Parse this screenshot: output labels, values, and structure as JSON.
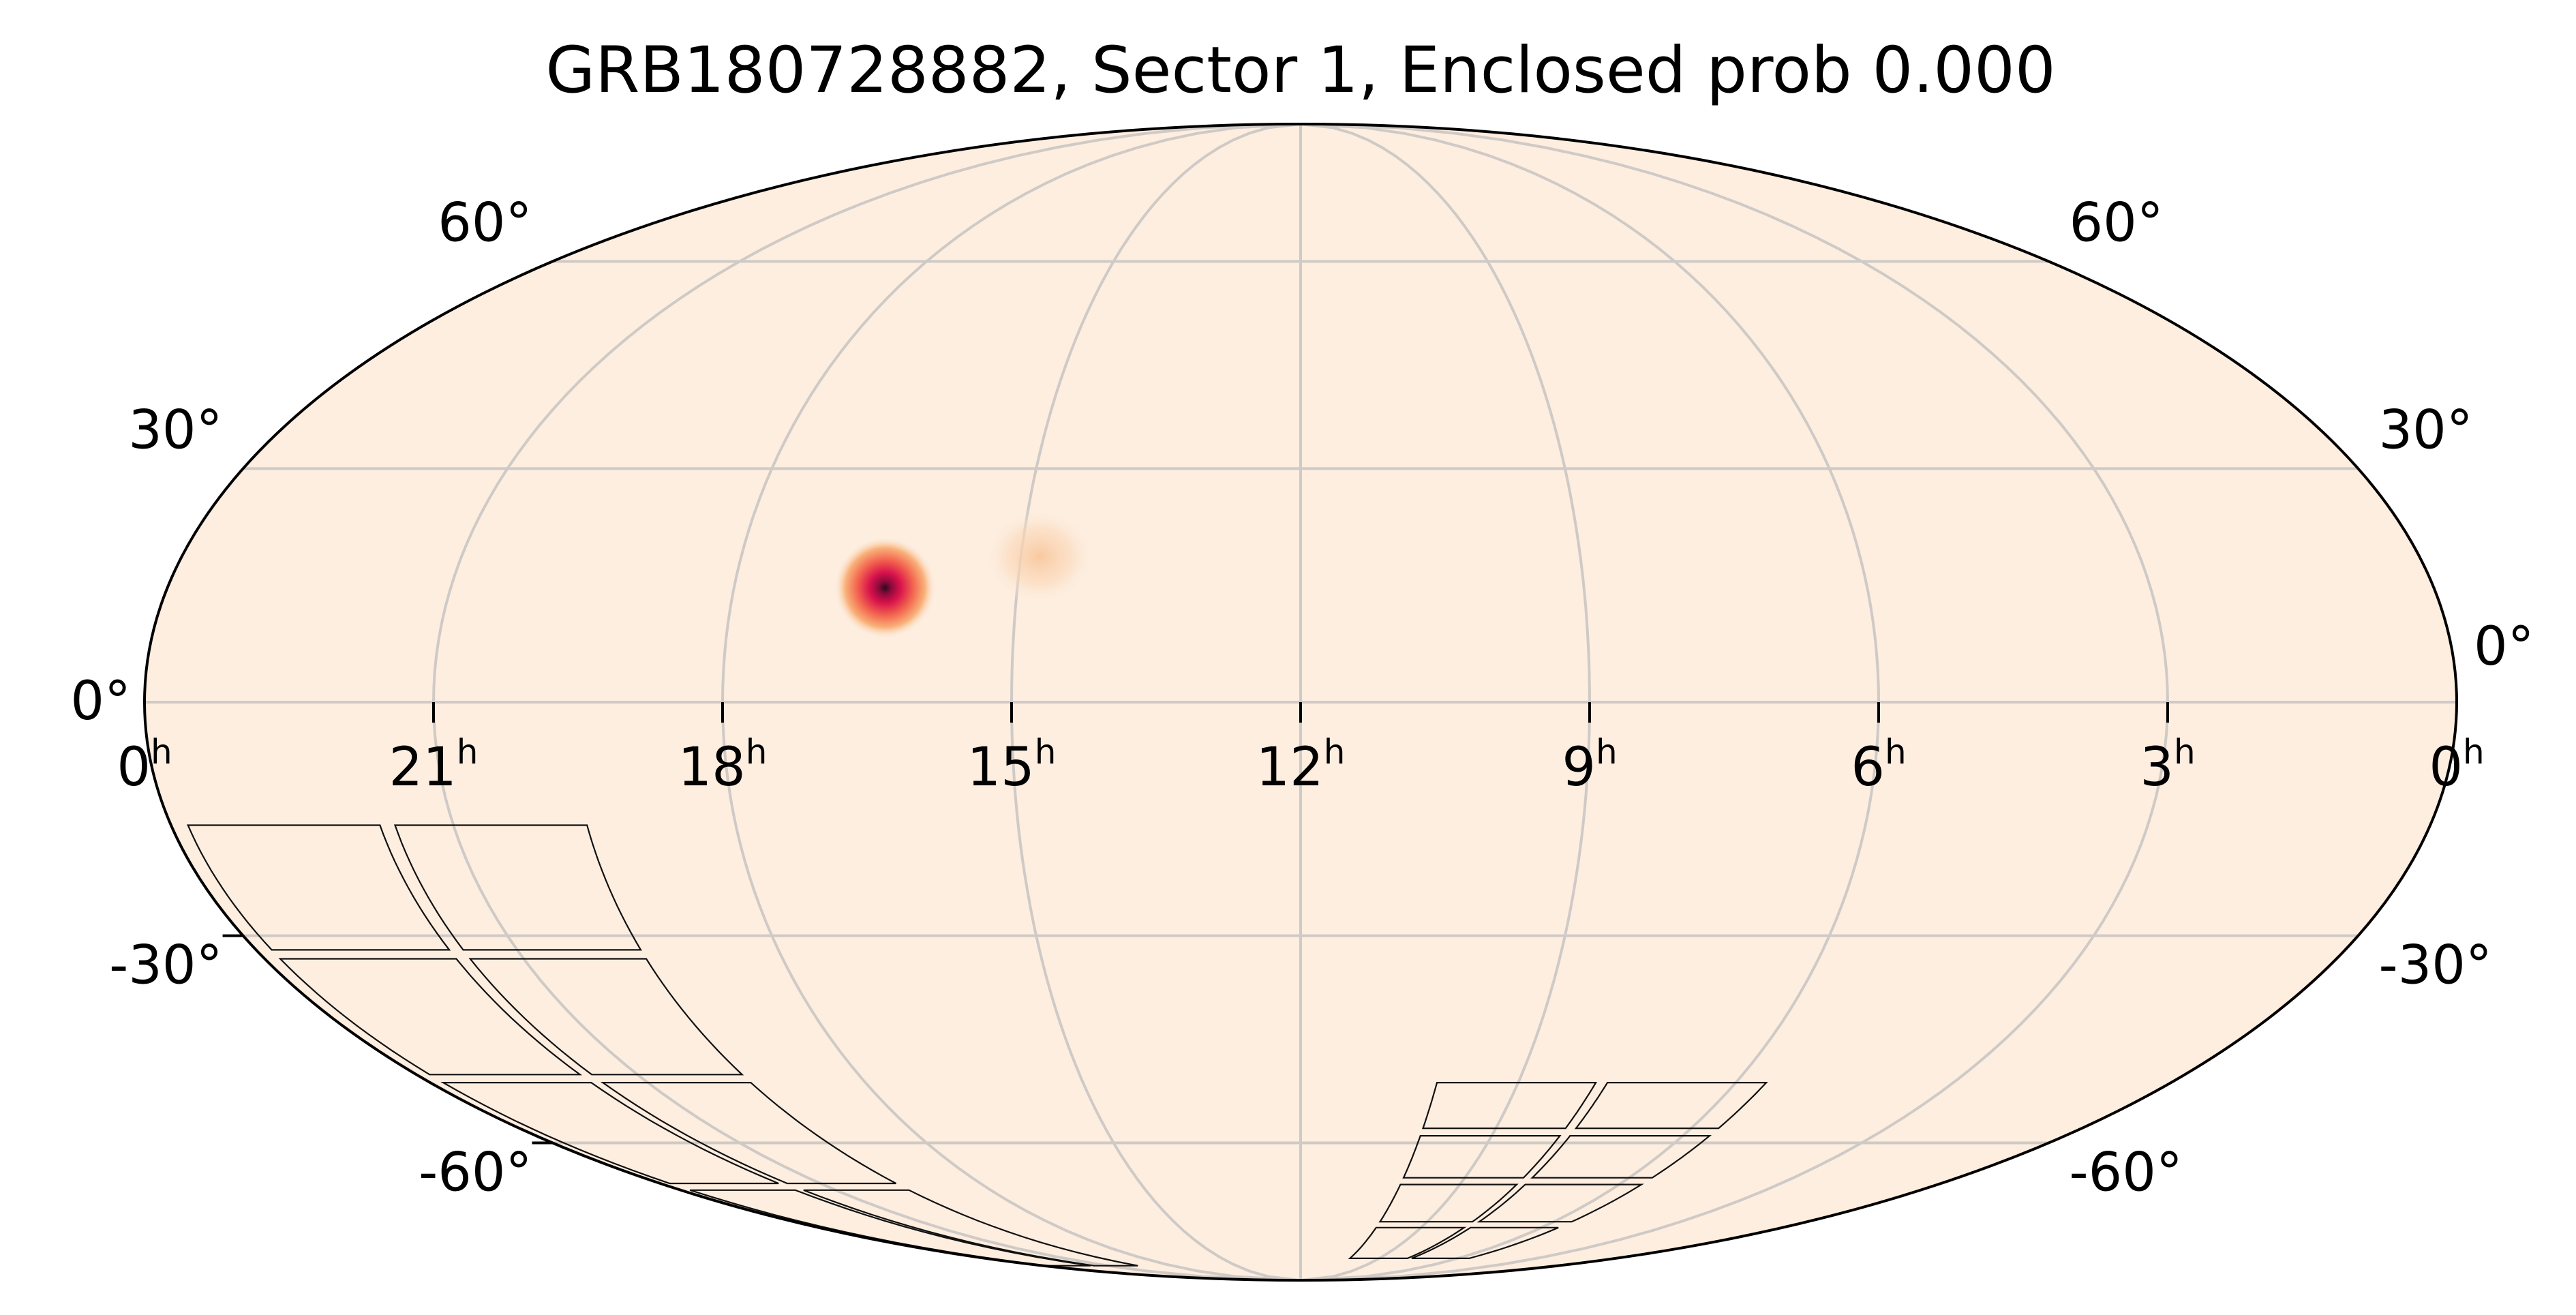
{
  "chart_data": {
    "type": "sky-map",
    "projection": "mollweide",
    "title": "GRB180728882, Sector 1, Enclosed prob 0.000",
    "grid": true,
    "background_color": "#fdeee0",
    "grid_color": "#cfcac6",
    "ra_ticks": [
      {
        "hours": 0,
        "label": "0",
        "unit": "h",
        "edge": "left"
      },
      {
        "hours": 21,
        "label": "21",
        "unit": "h"
      },
      {
        "hours": 18,
        "label": "18",
        "unit": "h"
      },
      {
        "hours": 15,
        "label": "15",
        "unit": "h"
      },
      {
        "hours": 12,
        "label": "12",
        "unit": "h"
      },
      {
        "hours": 9,
        "label": "9",
        "unit": "h"
      },
      {
        "hours": 6,
        "label": "6",
        "unit": "h"
      },
      {
        "hours": 3,
        "label": "3",
        "unit": "h"
      },
      {
        "hours": 0,
        "label": "0",
        "unit": "h",
        "edge": "right"
      }
    ],
    "dec_ticks": [
      {
        "deg": 60,
        "label": "60°"
      },
      {
        "deg": 30,
        "label": "30°"
      },
      {
        "deg": 0,
        "label": "0°"
      },
      {
        "deg": -30,
        "label": "-30°"
      },
      {
        "deg": -60,
        "label": "-60°"
      }
    ],
    "probability_peaks": [
      {
        "ra_hours": 16.4,
        "dec_deg": 14.5,
        "strength": 1.0
      },
      {
        "ra_hours": 14.8,
        "dec_deg": 18.5,
        "strength": 0.12
      }
    ],
    "colormap": [
      "#fdeee0",
      "#f9b27a",
      "#f3654f",
      "#d8124c",
      "#8a0a3a",
      "#2b0a20"
    ],
    "footprints": [
      {
        "name": "sector-footprint-west",
        "ra_hours": [
          19.5,
          23.9
        ],
        "dec_deg": [
          -85,
          -15
        ]
      },
      {
        "name": "sector-footprint-east",
        "ra_hours": [
          5.5,
          10.2
        ],
        "dec_deg": [
          -83,
          -50
        ]
      }
    ]
  }
}
